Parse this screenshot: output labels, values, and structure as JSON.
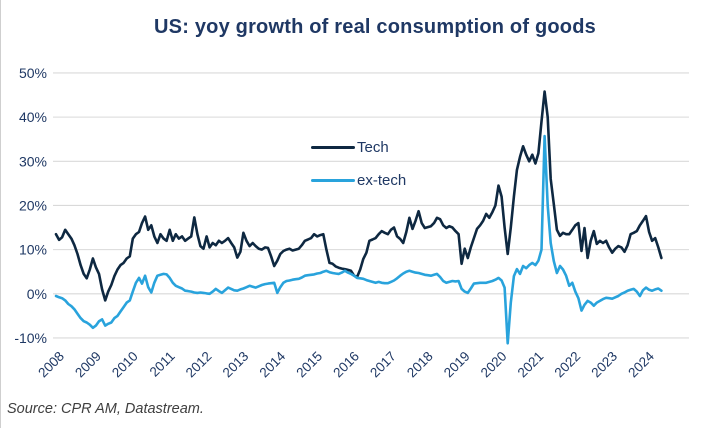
{
  "title": "US: yoy growth of real consumption of goods",
  "source": "Source: CPR AM, Datastream.",
  "legend": {
    "items": [
      {
        "label": "Tech",
        "color": "#0E2841"
      },
      {
        "label": "ex-tech",
        "color": "#29A3DC"
      }
    ]
  },
  "colors": {
    "title_text": "#1F3864",
    "axis_text": "#1F3864",
    "gridline": "#D9D9D9",
    "background": "#FFFFFF"
  },
  "chart_data": {
    "type": "line",
    "title": "US: yoy growth of real consumption of goods",
    "xlabel": "",
    "ylabel": "",
    "x_unit": "monthly",
    "x_start": "2008-01",
    "x_end": "2024-06",
    "xlim": [
      2008,
      2025.2
    ],
    "ylim": [
      -10,
      50
    ],
    "grid": "horizontal",
    "legend_position": "inside-upper-middle",
    "ytick_values": [
      50,
      40,
      30,
      20,
      10,
      0,
      -10
    ],
    "ytick_labels": [
      "50%",
      "40%",
      "30%",
      "20%",
      "10%",
      "0%",
      "-10%"
    ],
    "xtick_values": [
      2008,
      2009,
      2010,
      2011,
      2012,
      2013,
      2014,
      2015,
      2016,
      2017,
      2018,
      2019,
      2020,
      2021,
      2022,
      2023,
      2024
    ],
    "xtick_labels": [
      "2008",
      "2009",
      "2010",
      "2011",
      "2012",
      "2013",
      "2014",
      "2015",
      "2016",
      "2017",
      "2018",
      "2019",
      "2020",
      "2021",
      "2022",
      "2023",
      "2024"
    ],
    "series": [
      {
        "name": "Tech",
        "color": "#0E2841",
        "values": [
          13.5,
          12.2,
          12.8,
          14.5,
          13.5,
          12.5,
          11.0,
          9.0,
          6.5,
          4.5,
          3.5,
          5.5,
          8.0,
          6.0,
          4.5,
          1.0,
          -1.5,
          0.5,
          2.0,
          4.0,
          5.5,
          6.5,
          7.0,
          8.0,
          8.5,
          12.5,
          13.5,
          14.0,
          16.0,
          17.5,
          14.5,
          15.5,
          13.0,
          11.5,
          13.5,
          12.5,
          12.0,
          14.5,
          12.0,
          13.5,
          12.5,
          13.0,
          12.0,
          12.5,
          13.0,
          17.3,
          13.5,
          10.8,
          10.2,
          13.0,
          10.5,
          11.5,
          11.0,
          12.0,
          11.5,
          12.0,
          12.6,
          11.5,
          10.5,
          8.2,
          9.5,
          13.8,
          12.0,
          10.8,
          11.5,
          10.8,
          10.2,
          10.0,
          10.5,
          10.4,
          8.5,
          6.3,
          7.5,
          9.0,
          9.7,
          10.0,
          10.2,
          9.8,
          10.0,
          10.2,
          11.0,
          12.0,
          12.3,
          12.6,
          13.5,
          13.0,
          13.3,
          13.5,
          10.0,
          7.0,
          6.8,
          6.2,
          5.9,
          5.7,
          5.6,
          5.4,
          5.2,
          4.1,
          3.8,
          5.5,
          7.9,
          9.3,
          12.0,
          12.3,
          12.6,
          13.5,
          14.2,
          13.8,
          13.5,
          14.5,
          15.0,
          13.0,
          12.4,
          11.5,
          14.0,
          17.2,
          14.7,
          16.5,
          18.7,
          16.0,
          14.9,
          15.1,
          15.3,
          16.0,
          17.2,
          16.9,
          15.5,
          14.9,
          15.3,
          15.0,
          14.2,
          13.5,
          6.8,
          10.2,
          8.1,
          10.5,
          12.6,
          14.7,
          15.5,
          16.5,
          18.1,
          17.2,
          18.5,
          20.0,
          24.5,
          22.0,
          15.0,
          9.0,
          15.0,
          22.0,
          28.0,
          31.0,
          33.4,
          31.5,
          30.0,
          31.5,
          29.5,
          31.8,
          39.0,
          45.8,
          40.0,
          26.0,
          20.3,
          14.5,
          13.1,
          13.8,
          13.5,
          13.5,
          14.5,
          15.5,
          16.0,
          9.7,
          14.9,
          8.1,
          12.0,
          14.2,
          11.3,
          12.0,
          11.5,
          12.0,
          10.5,
          9.3,
          10.2,
          10.8,
          10.5,
          9.5,
          11.0,
          13.5,
          13.8,
          14.2,
          15.5,
          16.5,
          17.6,
          14.0,
          12.0,
          12.6,
          10.5,
          8.1
        ]
      },
      {
        "name": "ex-tech",
        "color": "#29A3DC",
        "values": [
          -0.5,
          -0.8,
          -1.0,
          -1.5,
          -2.3,
          -2.8,
          -3.5,
          -4.5,
          -5.5,
          -6.2,
          -6.5,
          -7.0,
          -7.7,
          -7.2,
          -6.2,
          -5.8,
          -7.2,
          -6.8,
          -6.5,
          -5.5,
          -5.0,
          -4.0,
          -3.0,
          -2.0,
          -1.5,
          0.5,
          2.5,
          3.6,
          2.3,
          4.1,
          1.5,
          0.3,
          2.5,
          4.1,
          4.3,
          4.5,
          4.4,
          3.6,
          2.5,
          1.8,
          1.5,
          1.2,
          0.7,
          0.6,
          0.5,
          0.3,
          0.2,
          0.3,
          0.2,
          0.1,
          0.0,
          0.5,
          1.1,
          0.6,
          0.2,
          0.8,
          1.4,
          1.1,
          0.8,
          0.7,
          1.0,
          1.2,
          1.5,
          1.8,
          1.6,
          1.4,
          1.7,
          2.0,
          2.2,
          2.3,
          2.4,
          2.5,
          0.2,
          1.5,
          2.5,
          2.9,
          3.0,
          3.2,
          3.3,
          3.4,
          3.7,
          4.1,
          4.2,
          4.3,
          4.4,
          4.6,
          4.7,
          5.0,
          5.2,
          4.9,
          4.7,
          4.6,
          4.5,
          4.8,
          5.2,
          4.8,
          4.5,
          4.1,
          3.6,
          3.5,
          3.4,
          3.1,
          2.9,
          2.7,
          2.5,
          2.7,
          2.5,
          2.4,
          2.4,
          2.7,
          3.0,
          3.5,
          4.1,
          4.6,
          5.0,
          5.2,
          5.0,
          4.8,
          4.7,
          4.5,
          4.3,
          4.2,
          4.1,
          4.3,
          4.5,
          3.8,
          2.9,
          2.5,
          2.7,
          2.9,
          2.8,
          2.9,
          1.1,
          0.5,
          0.2,
          1.2,
          2.3,
          2.4,
          2.5,
          2.5,
          2.5,
          2.7,
          2.9,
          3.2,
          3.6,
          3.0,
          1.4,
          -11.2,
          -2.0,
          4.0,
          5.6,
          4.5,
          6.3,
          5.8,
          6.5,
          7.0,
          6.5,
          7.5,
          10.0,
          35.7,
          20.0,
          11.5,
          7.4,
          4.7,
          6.3,
          5.5,
          4.1,
          1.8,
          2.5,
          0.5,
          -1.0,
          -3.8,
          -2.5,
          -1.6,
          -2.0,
          -2.7,
          -2.0,
          -1.6,
          -1.2,
          -0.9,
          -1.0,
          -1.1,
          -0.8,
          -0.5,
          0.0,
          0.3,
          0.7,
          0.9,
          1.1,
          0.5,
          -0.5,
          0.8,
          1.4,
          0.9,
          0.7,
          1.0,
          1.2,
          0.7
        ]
      }
    ]
  }
}
